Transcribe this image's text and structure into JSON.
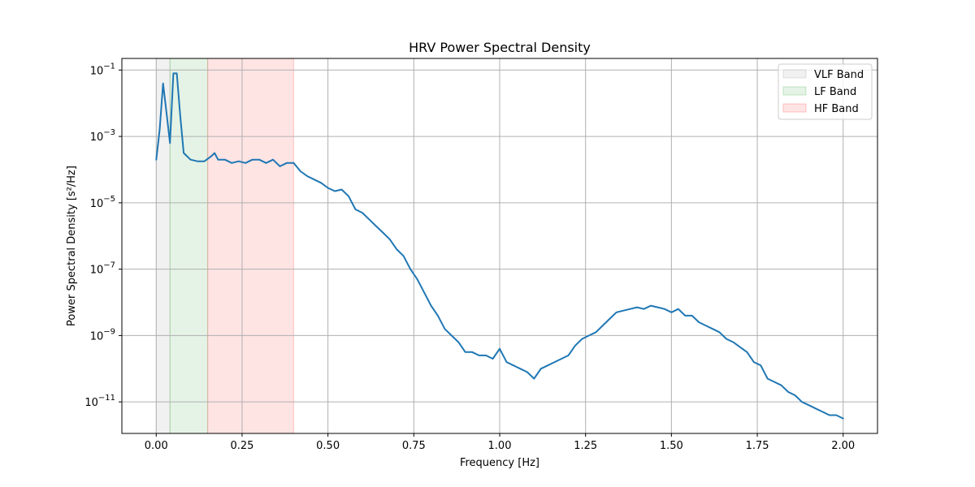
{
  "chart_data": {
    "type": "line",
    "title": "HRV Power Spectral Density",
    "xlabel": "Frequency [Hz]",
    "ylabel": "Power Spectral Density [s²/Hz]",
    "xlim": [
      -0.1,
      2.1
    ],
    "ylim_log10": [
      -11.95,
      -0.65
    ],
    "yscale": "log",
    "grid": true,
    "x_ticks": [
      {
        "value": 0.0,
        "label": "0.00"
      },
      {
        "value": 0.25,
        "label": "0.25"
      },
      {
        "value": 0.5,
        "label": "0.50"
      },
      {
        "value": 0.75,
        "label": "0.75"
      },
      {
        "value": 1.0,
        "label": "1.00"
      },
      {
        "value": 1.25,
        "label": "1.25"
      },
      {
        "value": 1.5,
        "label": "1.50"
      },
      {
        "value": 1.75,
        "label": "1.75"
      },
      {
        "value": 2.0,
        "label": "2.00"
      }
    ],
    "y_ticks": [
      {
        "exp": -1,
        "label": "10",
        "sup": "−1"
      },
      {
        "exp": -3,
        "label": "10",
        "sup": "−3"
      },
      {
        "exp": -5,
        "label": "10",
        "sup": "−5"
      },
      {
        "exp": -7,
        "label": "10",
        "sup": "−7"
      },
      {
        "exp": -9,
        "label": "10",
        "sup": "−9"
      },
      {
        "exp": -11,
        "label": "10",
        "sup": "−11"
      }
    ],
    "bands": [
      {
        "name": "VLF Band",
        "from": 0.0,
        "to": 0.04,
        "color": "#9e9e9e",
        "opacity": 0.15
      },
      {
        "name": "LF Band",
        "from": 0.04,
        "to": 0.15,
        "color": "#4caf50",
        "opacity": 0.15
      },
      {
        "name": "HF Band",
        "from": 0.15,
        "to": 0.4,
        "color": "#ff4d4d",
        "opacity": 0.15
      }
    ],
    "legend_position": "top-right",
    "series": [
      {
        "color": "#1f77b4",
        "x": [
          0.0,
          0.01,
          0.02,
          0.03,
          0.04,
          0.05,
          0.06,
          0.07,
          0.08,
          0.09,
          0.1,
          0.12,
          0.14,
          0.16,
          0.17,
          0.18,
          0.2,
          0.22,
          0.24,
          0.26,
          0.28,
          0.3,
          0.32,
          0.34,
          0.36,
          0.38,
          0.4,
          0.42,
          0.44,
          0.46,
          0.48,
          0.5,
          0.52,
          0.54,
          0.56,
          0.58,
          0.6,
          0.62,
          0.64,
          0.66,
          0.68,
          0.7,
          0.72,
          0.74,
          0.76,
          0.78,
          0.8,
          0.82,
          0.84,
          0.86,
          0.88,
          0.9,
          0.92,
          0.94,
          0.96,
          0.98,
          1.0,
          1.02,
          1.04,
          1.06,
          1.08,
          1.1,
          1.12,
          1.14,
          1.16,
          1.18,
          1.2,
          1.22,
          1.24,
          1.26,
          1.28,
          1.3,
          1.32,
          1.34,
          1.36,
          1.38,
          1.4,
          1.42,
          1.44,
          1.46,
          1.48,
          1.5,
          1.52,
          1.54,
          1.56,
          1.58,
          1.6,
          1.62,
          1.64,
          1.66,
          1.68,
          1.7,
          1.72,
          1.74,
          1.76,
          1.78,
          1.8,
          1.82,
          1.84,
          1.86,
          1.88,
          1.9,
          1.92,
          1.94,
          1.96,
          1.98,
          2.0
        ],
        "y_log10": [
          -3.7,
          -2.8,
          -1.4,
          -2.3,
          -3.2,
          -1.1,
          -1.1,
          -2.4,
          -3.5,
          -3.6,
          -3.7,
          -3.75,
          -3.75,
          -3.6,
          -3.5,
          -3.7,
          -3.7,
          -3.8,
          -3.75,
          -3.8,
          -3.7,
          -3.7,
          -3.8,
          -3.7,
          -3.9,
          -3.8,
          -3.8,
          -4.05,
          -4.2,
          -4.3,
          -4.4,
          -4.55,
          -4.65,
          -4.6,
          -4.8,
          -5.2,
          -5.3,
          -5.5,
          -5.7,
          -5.9,
          -6.1,
          -6.4,
          -6.6,
          -7.0,
          -7.3,
          -7.7,
          -8.1,
          -8.4,
          -8.8,
          -9.0,
          -9.2,
          -9.5,
          -9.5,
          -9.6,
          -9.6,
          -9.7,
          -9.4,
          -9.8,
          -9.9,
          -10.0,
          -10.1,
          -10.3,
          -10.0,
          -9.9,
          -9.8,
          -9.7,
          -9.6,
          -9.3,
          -9.1,
          -9.0,
          -8.9,
          -8.7,
          -8.5,
          -8.3,
          -8.25,
          -8.2,
          -8.15,
          -8.2,
          -8.1,
          -8.15,
          -8.2,
          -8.3,
          -8.2,
          -8.4,
          -8.4,
          -8.6,
          -8.7,
          -8.8,
          -8.9,
          -9.1,
          -9.2,
          -9.35,
          -9.5,
          -9.8,
          -9.9,
          -10.3,
          -10.4,
          -10.5,
          -10.7,
          -10.8,
          -11.0,
          -11.1,
          -11.2,
          -11.3,
          -11.4,
          -11.4,
          -11.5
        ]
      }
    ]
  }
}
